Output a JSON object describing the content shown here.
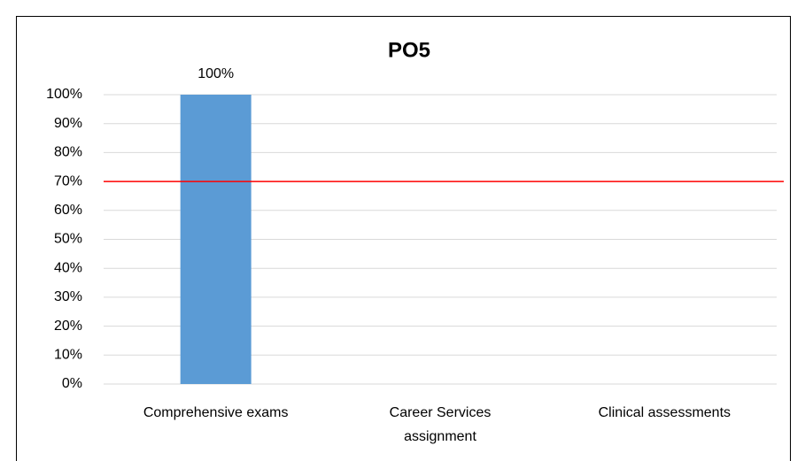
{
  "chart_data": {
    "type": "bar",
    "title": "PO5",
    "categories": [
      "Comprehensive exams",
      "Career Services assignment",
      "Clinical assessments"
    ],
    "values": [
      100,
      null,
      null
    ],
    "value_labels": [
      "100%",
      null,
      null
    ],
    "color": "#5b9bd5",
    "ylim": [
      0,
      100
    ],
    "yticks": [
      {
        "value": 0,
        "label": "0%"
      },
      {
        "value": 10,
        "label": "10%"
      },
      {
        "value": 20,
        "label": "20%"
      },
      {
        "value": 30,
        "label": "30%"
      },
      {
        "value": 40,
        "label": "40%"
      },
      {
        "value": 50,
        "label": "50%"
      },
      {
        "value": 60,
        "label": "60%"
      },
      {
        "value": 70,
        "label": "70%"
      },
      {
        "value": 80,
        "label": "80%"
      },
      {
        "value": 90,
        "label": "90%"
      },
      {
        "value": 100,
        "label": "100%"
      }
    ],
    "grid": true,
    "reference_line": {
      "value": 70,
      "color": "#ff0000"
    }
  }
}
